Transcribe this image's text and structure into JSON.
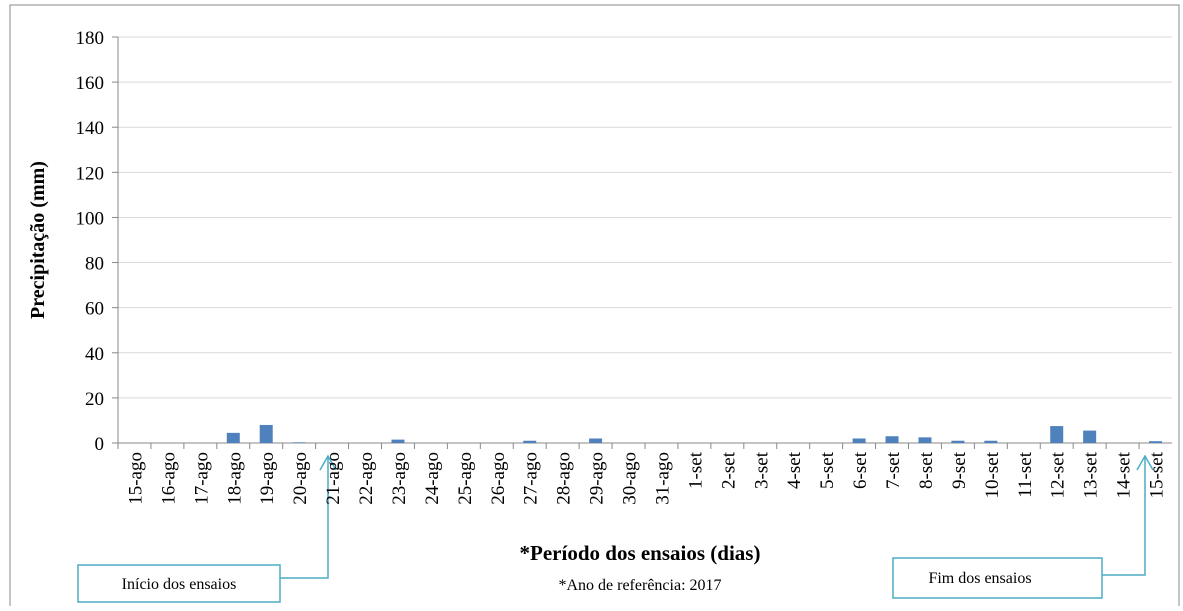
{
  "chart_data": {
    "type": "bar",
    "y_label": "Precipitação (mm)",
    "x_label": "*Período dos ensaios (dias)",
    "note": "*Ano de referência: 2017",
    "annotations": [
      "Início dos ensaios",
      "Fim dos ensaios"
    ],
    "categories": [
      "15-ago",
      "16-ago",
      "17-ago",
      "18-ago",
      "19-ago",
      "20-ago",
      "21-ago",
      "22-ago",
      "23-ago",
      "24-ago",
      "25-ago",
      "26-ago",
      "27-ago",
      "28-ago",
      "29-ago",
      "30-ago",
      "31-ago",
      "1-set",
      "2-set",
      "3-set",
      "4-set",
      "5-set",
      "6-set",
      "7-set",
      "8-set",
      "9-set",
      "10-set",
      "11-set",
      "12-set",
      "13-set",
      "14-set",
      "15-set"
    ],
    "values": [
      0,
      0,
      0,
      4.5,
      8,
      0.3,
      0,
      0,
      1.5,
      0,
      0,
      0,
      1,
      0,
      2,
      0,
      0,
      0,
      0,
      0,
      0,
      0,
      2,
      3,
      2.5,
      1,
      1,
      0,
      7.5,
      5.5,
      0,
      0.8
    ],
    "color": "#4f81bd",
    "ylim": [
      0,
      180
    ],
    "yticks": [
      0,
      20,
      40,
      60,
      80,
      100,
      120,
      140,
      160,
      180
    ],
    "grid": true
  }
}
